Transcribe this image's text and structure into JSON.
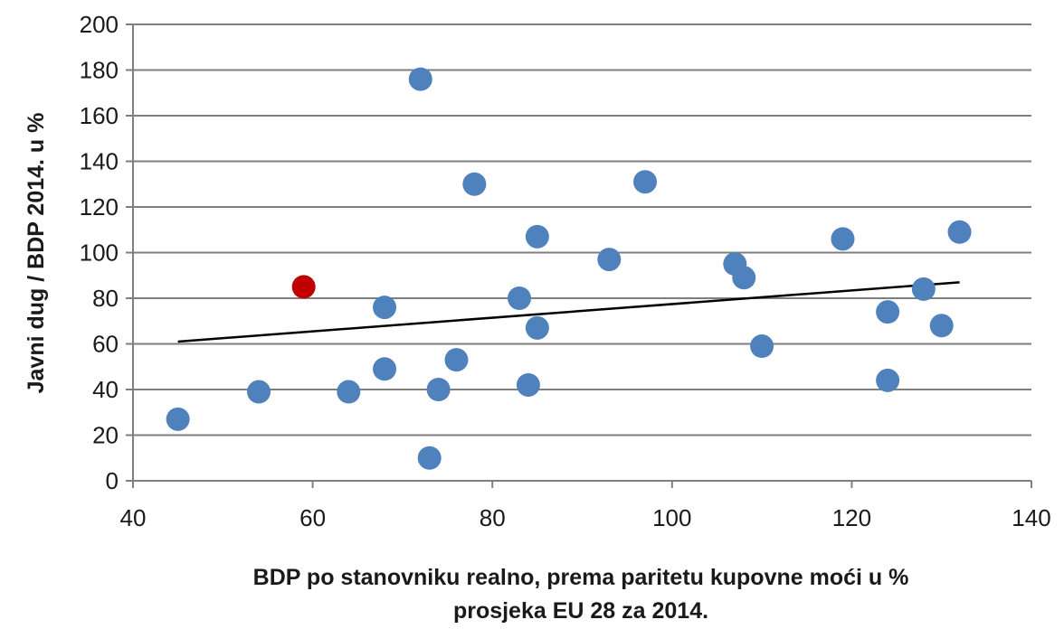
{
  "chart_data": {
    "type": "scatter",
    "xlabel_line1": "BDP po stanovniku realno, prema paritetu kupovne moći u %",
    "xlabel_line2": "prosjeka EU 28 za 2014.",
    "ylabel": "Javni dug / BDP 2014. u %",
    "xlim": [
      40,
      140
    ],
    "ylim": [
      0,
      200
    ],
    "x_ticks": [
      40,
      60,
      80,
      100,
      120,
      140
    ],
    "y_ticks": [
      0,
      20,
      40,
      60,
      80,
      100,
      120,
      140,
      160,
      180,
      200
    ],
    "grid": "horizontal",
    "series": [
      {
        "color": "#4f81bd",
        "points": [
          [
            45,
            27
          ],
          [
            54,
            39
          ],
          [
            64,
            39
          ],
          [
            68,
            76
          ],
          [
            68,
            49
          ],
          [
            72,
            176
          ],
          [
            73,
            10
          ],
          [
            74,
            40
          ],
          [
            76,
            53
          ],
          [
            78,
            130
          ],
          [
            83,
            80
          ],
          [
            84,
            42
          ],
          [
            85,
            107
          ],
          [
            85,
            67
          ],
          [
            93,
            97
          ],
          [
            97,
            131
          ],
          [
            107,
            95
          ],
          [
            108,
            89
          ],
          [
            110,
            59
          ],
          [
            119,
            106
          ],
          [
            124,
            74
          ],
          [
            124,
            44
          ],
          [
            128,
            84
          ],
          [
            130,
            68
          ],
          [
            132,
            109
          ]
        ]
      },
      {
        "color": "#c00000",
        "points": [
          [
            59,
            85
          ]
        ]
      }
    ],
    "trendline": {
      "color": "#000000",
      "x": [
        45,
        132
      ],
      "y": [
        61,
        87
      ]
    }
  }
}
